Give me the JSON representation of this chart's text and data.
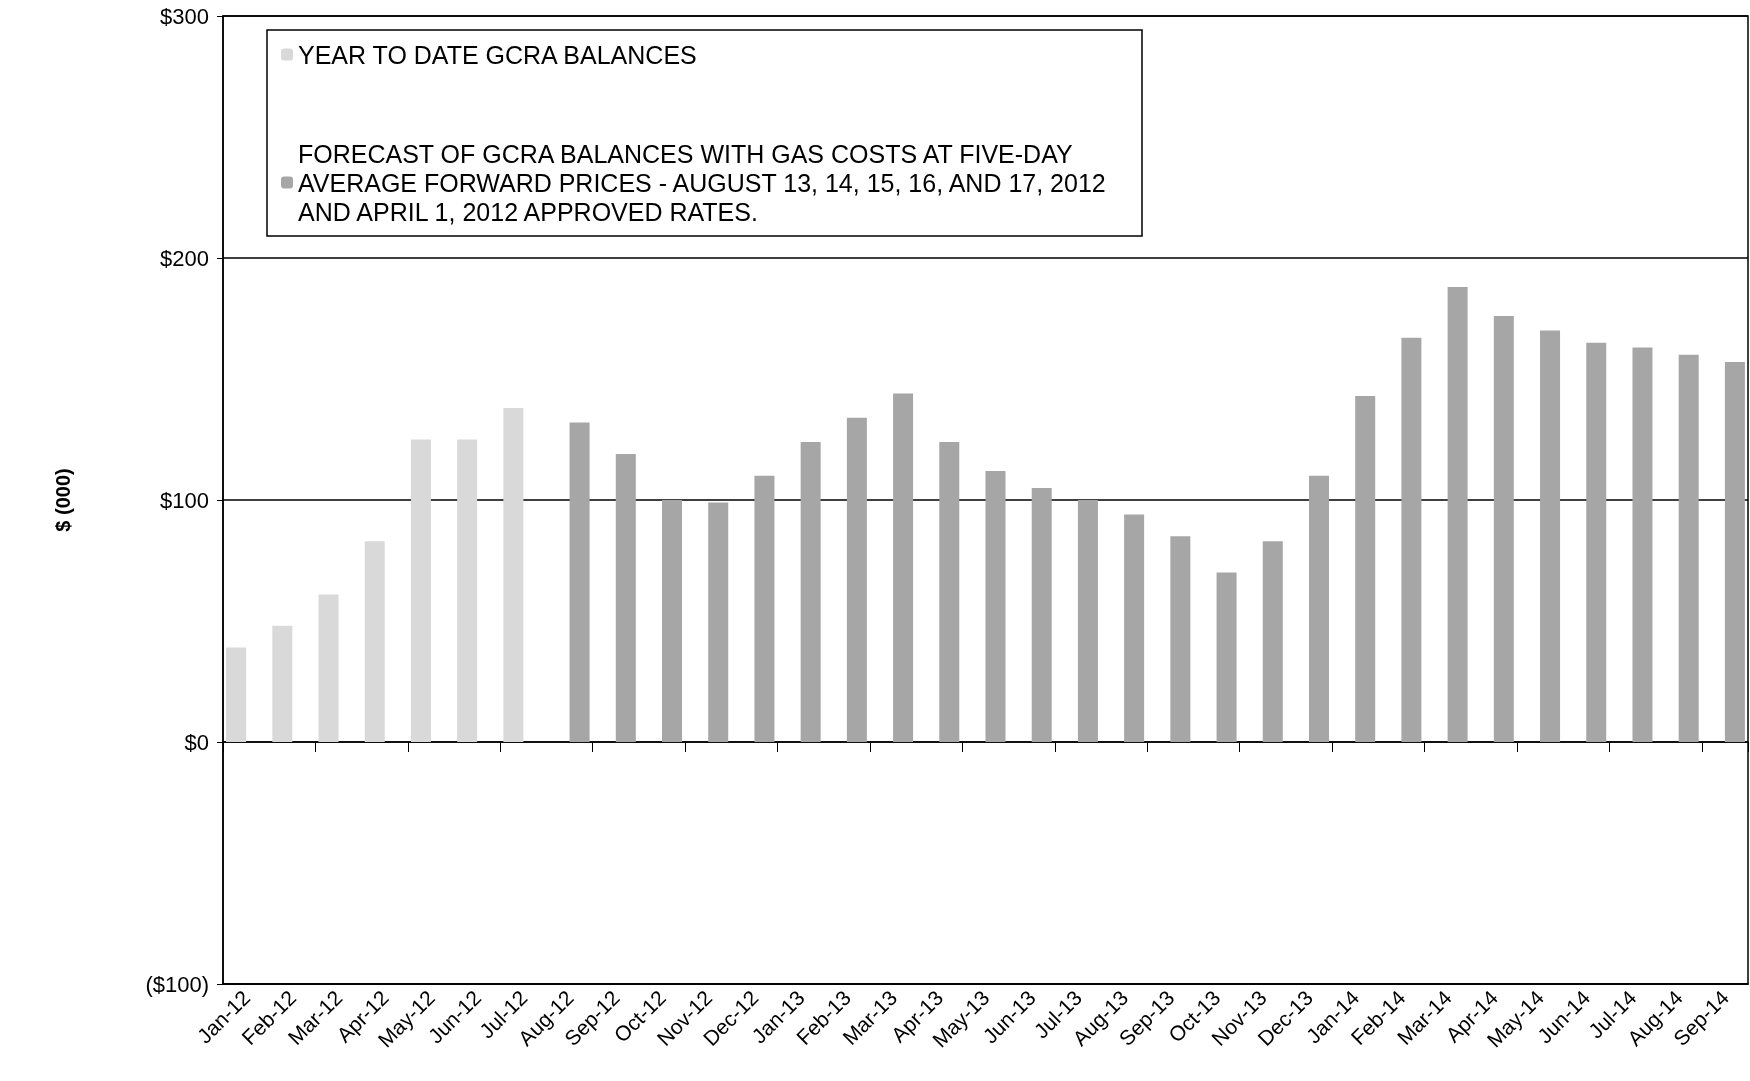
{
  "chart_data": {
    "type": "bar",
    "ylabel": "$ (000)",
    "categories": [
      "Jan-12",
      "Feb-12",
      "Mar-12",
      "Apr-12",
      "May-12",
      "Jun-12",
      "Jul-12",
      "Aug-12",
      "Sep-12",
      "Oct-12",
      "Nov-12",
      "Dec-12",
      "Jan-13",
      "Feb-13",
      "Mar-13",
      "Apr-13",
      "May-13",
      "Jun-13",
      "Jul-13",
      "Aug-13",
      "Sep-13",
      "Oct-13",
      "Nov-13",
      "Dec-13",
      "Jan-14",
      "Feb-14",
      "Mar-14",
      "Apr-14",
      "May-14",
      "Jun-14",
      "Jul-14",
      "Aug-14",
      "Sep-14"
    ],
    "series": [
      {
        "name": "YEAR TO DATE GCRA BALANCES",
        "color": "#d9d9d9",
        "values": [
          39,
          48,
          61,
          83,
          125,
          125,
          138,
          null,
          null,
          null,
          null,
          null,
          null,
          null,
          null,
          null,
          null,
          null,
          null,
          null,
          null,
          null,
          null,
          null,
          null,
          null,
          null,
          null,
          null,
          null,
          null,
          null,
          null
        ]
      },
      {
        "name": "FORECAST OF GCRA BALANCES WITH GAS COSTS AT FIVE-DAY AVERAGE FORWARD PRICES - AUGUST 13, 14, 15, 16, AND 17, 2012 AND APRIL 1, 2012 APPROVED RATES.",
        "color": "#a6a6a6",
        "values": [
          null,
          null,
          null,
          null,
          null,
          null,
          null,
          132,
          119,
          100,
          99,
          110,
          124,
          134,
          144,
          124,
          112,
          105,
          100,
          94,
          85,
          70,
          83,
          110,
          143,
          167,
          188,
          176,
          170,
          165,
          163,
          160,
          157
        ]
      }
    ],
    "ylim": [
      -100,
      300
    ],
    "yticks": [
      {
        "value": -100,
        "label": "($100)"
      },
      {
        "value": 0,
        "label": "$0"
      },
      {
        "value": 100,
        "label": "$100"
      },
      {
        "value": 200,
        "label": "$200"
      },
      {
        "value": 300,
        "label": "$300"
      }
    ],
    "grid": "y",
    "legend": "top left"
  }
}
